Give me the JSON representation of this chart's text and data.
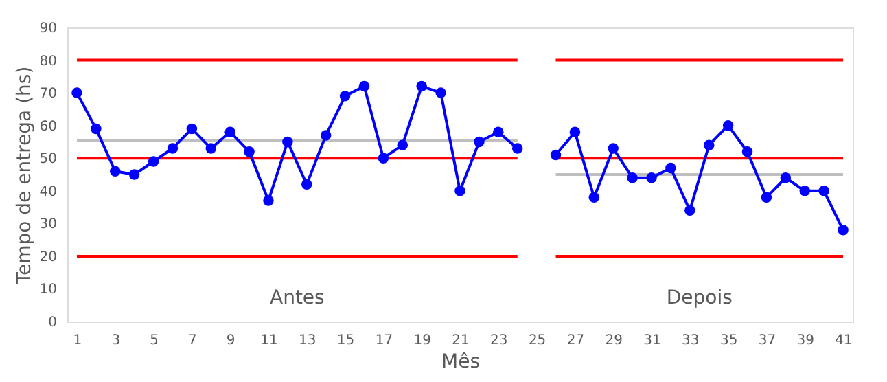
{
  "chart_data": {
    "type": "line",
    "xlabel": "Mês",
    "ylabel": "Tempo de entrega (hs)",
    "xlim": [
      0.5,
      41.5
    ],
    "xticks": [
      1,
      3,
      5,
      7,
      9,
      11,
      13,
      15,
      17,
      19,
      21,
      23,
      25,
      27,
      29,
      31,
      33,
      35,
      37,
      39,
      41
    ],
    "ylim": [
      0,
      90
    ],
    "yticks": [
      0,
      10,
      20,
      30,
      40,
      50,
      60,
      70,
      80,
      90
    ],
    "grid": false,
    "line_style": "solid",
    "series": [
      {
        "color": "#ff0000",
        "marker": "none",
        "x": [
          1,
          24
        ],
        "values": [
          80,
          80
        ]
      },
      {
        "color": "#ff0000",
        "marker": "none",
        "x": [
          1,
          24
        ],
        "values": [
          50,
          50
        ]
      },
      {
        "color": "#ff0000",
        "marker": "none",
        "x": [
          1,
          24
        ],
        "values": [
          20,
          20
        ]
      },
      {
        "color": "#ff0000",
        "marker": "none",
        "x": [
          26,
          41
        ],
        "values": [
          80,
          80
        ]
      },
      {
        "color": "#ff0000",
        "marker": "none",
        "x": [
          26,
          41
        ],
        "values": [
          50,
          50
        ]
      },
      {
        "color": "#ff0000",
        "marker": "none",
        "x": [
          26,
          41
        ],
        "values": [
          20,
          20
        ]
      },
      {
        "color": "#bfbfbf",
        "marker": "none",
        "x": [
          1,
          24
        ],
        "values": [
          55.5,
          55.5
        ]
      },
      {
        "color": "#bfbfbf",
        "marker": "none",
        "x": [
          26,
          41
        ],
        "values": [
          45,
          45
        ]
      },
      {
        "color": "#0000ff",
        "marker": "circle",
        "x": [
          1,
          2,
          3,
          4,
          5,
          6,
          7,
          8,
          9,
          10,
          11,
          12,
          13,
          14,
          15,
          16,
          17,
          18,
          19,
          20,
          21,
          22,
          23,
          24
        ],
        "values": [
          70,
          59,
          46,
          45,
          49,
          53,
          59,
          53,
          58,
          52,
          37,
          55,
          42,
          57,
          69,
          72,
          50,
          54,
          72,
          70,
          40,
          55,
          58,
          53
        ]
      },
      {
        "color": "#0000ff",
        "marker": "circle",
        "x": [
          26,
          27,
          28,
          29,
          30,
          31,
          32,
          33,
          34,
          35,
          36,
          37,
          38,
          39,
          40,
          41
        ],
        "values": [
          51,
          58,
          38,
          53,
          44,
          44,
          47,
          34,
          54,
          60,
          52,
          38,
          44,
          40,
          40,
          28
        ]
      }
    ],
    "annotations": [
      "Antes",
      "Depois"
    ]
  }
}
